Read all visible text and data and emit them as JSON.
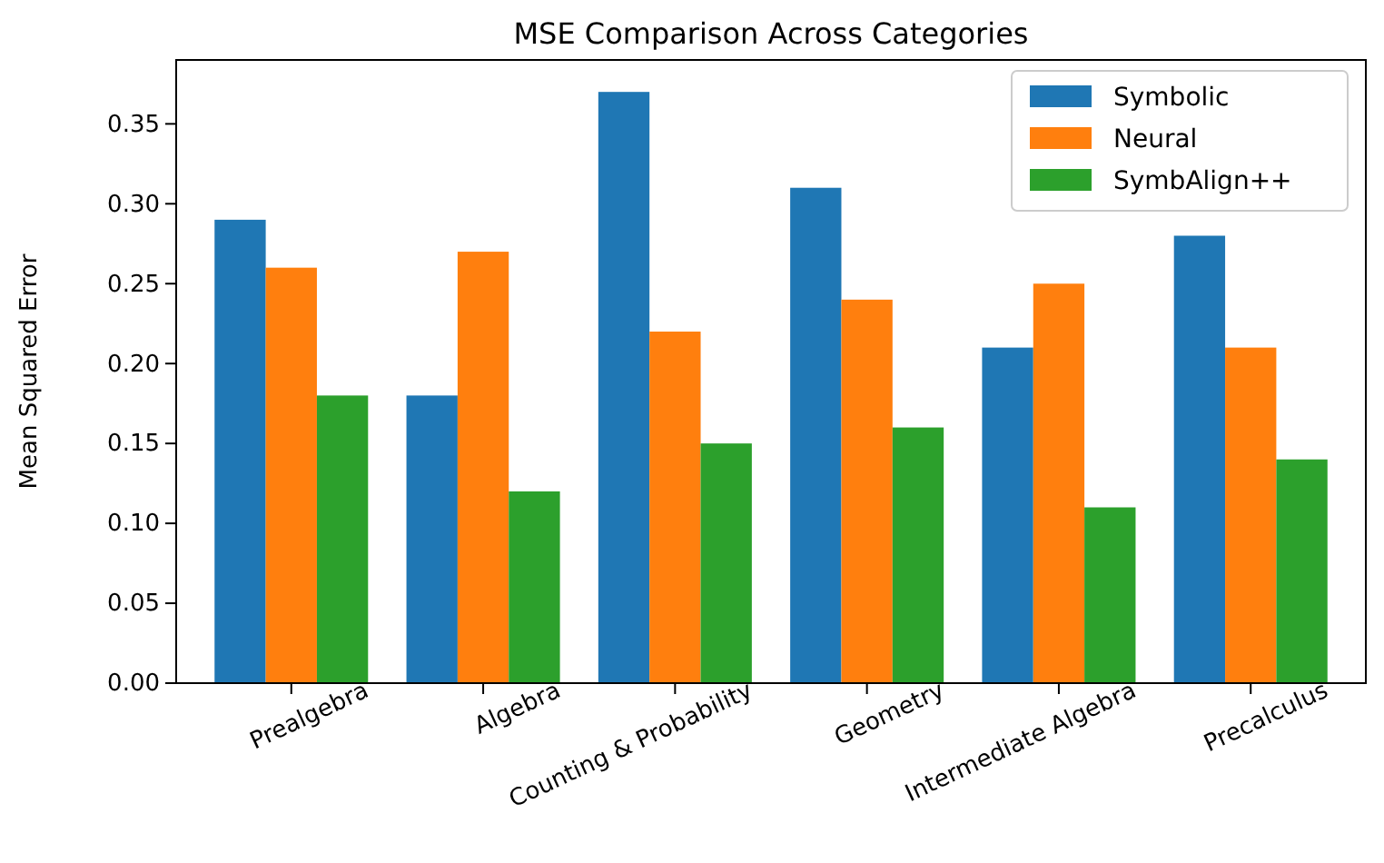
{
  "chart_data": {
    "type": "bar",
    "title": "MSE Comparison Across Categories",
    "ylabel": "Mean Squared Error",
    "categories": [
      "Prealgebra",
      "Algebra",
      "Counting & Probability",
      "Geometry",
      "Intermediate Algebra",
      "Precalculus"
    ],
    "series": [
      {
        "name": "Symbolic",
        "color": "#1f77b4",
        "values": [
          0.29,
          0.18,
          0.37,
          0.31,
          0.21,
          0.28
        ]
      },
      {
        "name": "Neural",
        "color": "#ff7f0e",
        "values": [
          0.26,
          0.27,
          0.22,
          0.24,
          0.25,
          0.21
        ]
      },
      {
        "name": "SymbAlign++",
        "color": "#2ca02c",
        "values": [
          0.18,
          0.12,
          0.15,
          0.16,
          0.11,
          0.14
        ]
      }
    ],
    "ylim": [
      0,
      0.39
    ],
    "yticks": [
      {
        "value": 0,
        "label": "0.00"
      },
      {
        "value": 0.05,
        "label": "0.05"
      },
      {
        "value": 0.1,
        "label": "0.10"
      },
      {
        "value": 0.15,
        "label": "0.15"
      },
      {
        "value": 0.2,
        "label": "0.20"
      },
      {
        "value": 0.25,
        "label": "0.25"
      },
      {
        "value": 0.3,
        "label": "0.30"
      },
      {
        "value": 0.35,
        "label": "0.35"
      }
    ],
    "legend": "top right"
  }
}
